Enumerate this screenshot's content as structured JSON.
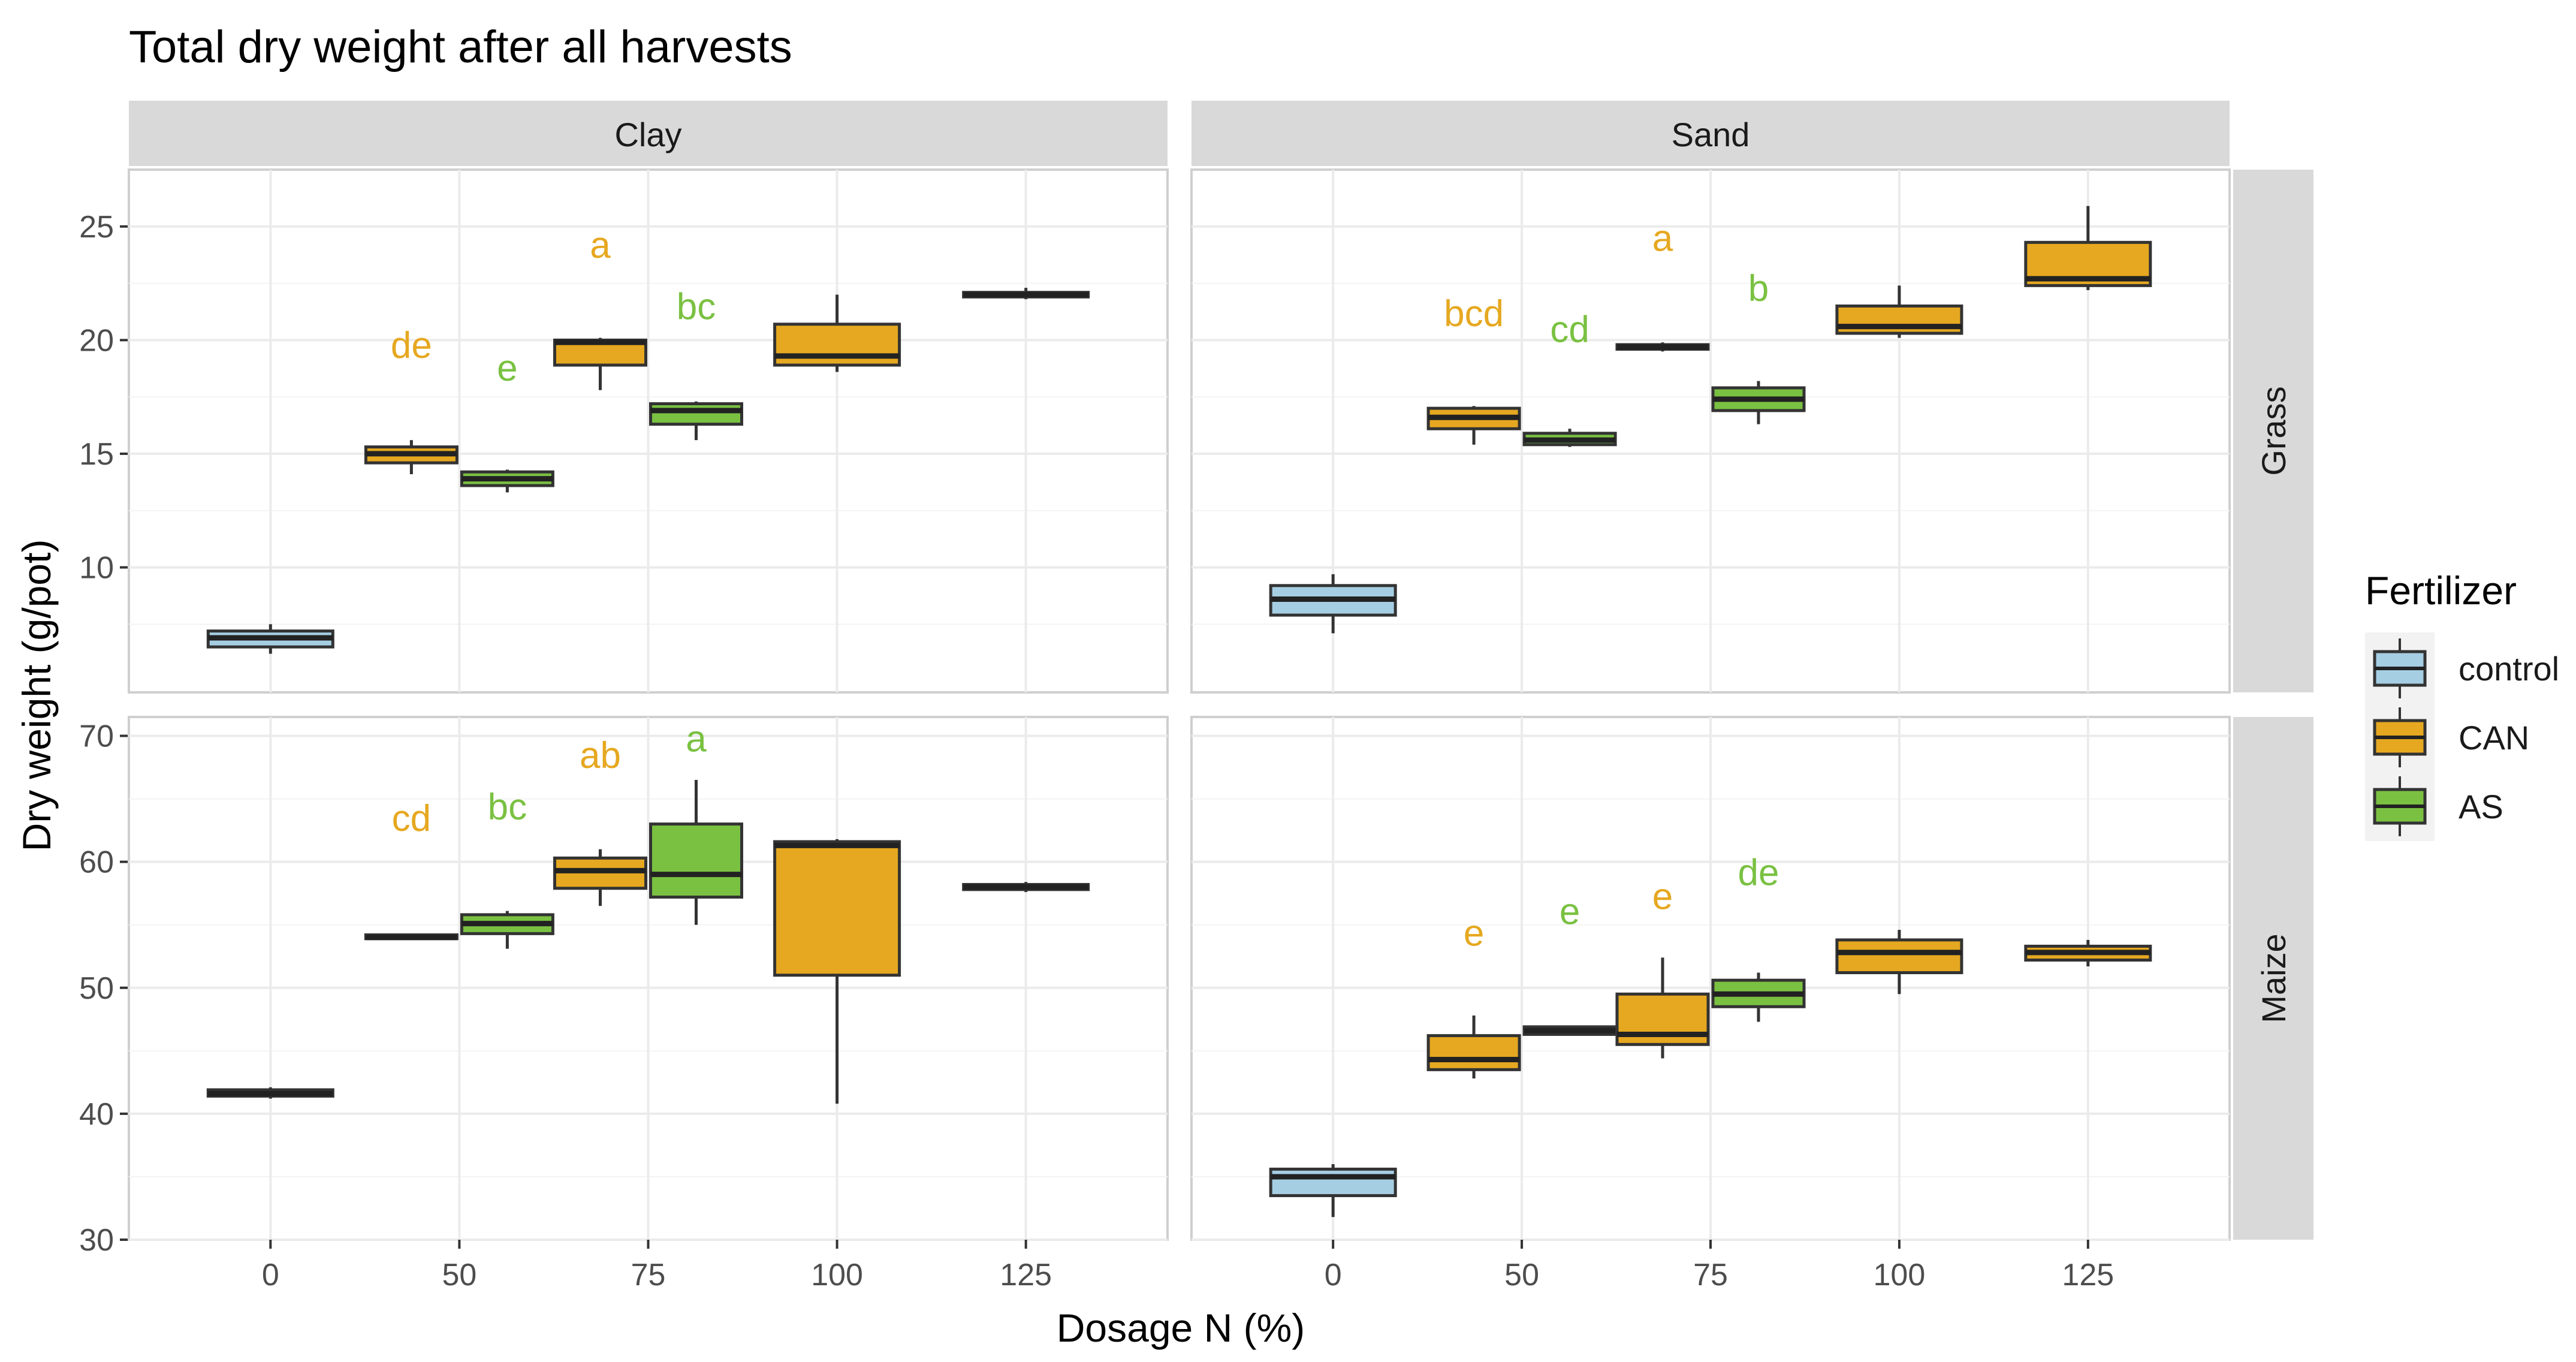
{
  "chart_data": {
    "type": "box",
    "title": "Total dry weight after all harvests",
    "xlabel": "Dosage N (%)",
    "ylabel": "Dry weight (g/pot)",
    "x_ticks": [
      "0",
      "50",
      "75",
      "100",
      "125"
    ],
    "column_strips": [
      "Clay",
      "Sand"
    ],
    "row_strips": [
      "Grass",
      "Maize"
    ],
    "legend": {
      "title": "Fertilizer",
      "position": "right",
      "entries": [
        {
          "name": "control",
          "color": "#a6cee3"
        },
        {
          "name": "CAN",
          "color": "#e6a820"
        },
        {
          "name": "AS",
          "color": "#7ac142"
        }
      ]
    },
    "label_colors": {
      "CAN": "#e6a820",
      "AS": "#7ac142"
    },
    "rows": [
      {
        "name": "Grass",
        "ylim": [
          4.5,
          27.5
        ],
        "yticks": [
          10,
          15,
          20,
          25
        ],
        "panels": [
          {
            "soil": "Clay",
            "boxes": [
              {
                "dose": "0",
                "group": "control",
                "min": 6.2,
                "q1": 6.5,
                "median": 6.9,
                "q3": 7.2,
                "max": 7.5
              },
              {
                "dose": "50",
                "group": "CAN",
                "min": 14.1,
                "q1": 14.6,
                "median": 15.0,
                "q3": 15.3,
                "max": 15.6
              },
              {
                "dose": "50",
                "group": "AS",
                "min": 13.3,
                "q1": 13.6,
                "median": 13.9,
                "q3": 14.2,
                "max": 14.3
              },
              {
                "dose": "75",
                "group": "CAN",
                "min": 17.8,
                "q1": 18.9,
                "median": 19.9,
                "q3": 20.0,
                "max": 20.1
              },
              {
                "dose": "75",
                "group": "AS",
                "min": 15.6,
                "q1": 16.3,
                "median": 16.9,
                "q3": 17.2,
                "max": 17.3
              },
              {
                "dose": "100",
                "group": "CAN",
                "min": 18.6,
                "q1": 18.9,
                "median": 19.3,
                "q3": 20.7,
                "max": 22.0
              },
              {
                "dose": "125",
                "group": "CAN",
                "min": 21.8,
                "q1": 21.9,
                "median": 22.0,
                "q3": 22.1,
                "max": 22.3
              }
            ],
            "labels": [
              {
                "text": "de",
                "dose": "50",
                "group": "CAN",
                "y": 19.8
              },
              {
                "text": "e",
                "dose": "50",
                "group": "AS",
                "y": 18.8
              },
              {
                "text": "a",
                "dose": "75",
                "group": "CAN",
                "y": 24.2
              },
              {
                "text": "bc",
                "dose": "75",
                "group": "AS",
                "y": 21.5
              }
            ]
          },
          {
            "soil": "Sand",
            "boxes": [
              {
                "dose": "0",
                "group": "control",
                "min": 7.1,
                "q1": 7.9,
                "median": 8.6,
                "q3": 9.2,
                "max": 9.7
              },
              {
                "dose": "50",
                "group": "CAN",
                "min": 15.4,
                "q1": 16.1,
                "median": 16.6,
                "q3": 17.0,
                "max": 17.1
              },
              {
                "dose": "50",
                "group": "AS",
                "min": 15.3,
                "q1": 15.4,
                "median": 15.6,
                "q3": 15.9,
                "max": 16.1
              },
              {
                "dose": "75",
                "group": "CAN",
                "min": 19.5,
                "q1": 19.6,
                "median": 19.7,
                "q3": 19.8,
                "max": 19.9
              },
              {
                "dose": "75",
                "group": "AS",
                "min": 16.3,
                "q1": 16.9,
                "median": 17.4,
                "q3": 17.9,
                "max": 18.2
              },
              {
                "dose": "100",
                "group": "CAN",
                "min": 20.1,
                "q1": 20.3,
                "median": 20.6,
                "q3": 21.5,
                "max": 22.4
              },
              {
                "dose": "125",
                "group": "CAN",
                "min": 22.2,
                "q1": 22.4,
                "median": 22.7,
                "q3": 24.3,
                "max": 25.9
              }
            ],
            "labels": [
              {
                "text": "bcd",
                "dose": "50",
                "group": "CAN",
                "y": 21.2
              },
              {
                "text": "cd",
                "dose": "50",
                "group": "AS",
                "y": 20.5
              },
              {
                "text": "a",
                "dose": "75",
                "group": "CAN",
                "y": 24.5
              },
              {
                "text": "b",
                "dose": "75",
                "group": "AS",
                "y": 22.3
              }
            ]
          }
        ]
      },
      {
        "name": "Maize",
        "ylim": [
          30,
          71.5
        ],
        "yticks": [
          30,
          40,
          50,
          60,
          70
        ],
        "panels": [
          {
            "soil": "Clay",
            "boxes": [
              {
                "dose": "0",
                "group": "control",
                "min": 41.2,
                "q1": 41.4,
                "median": 41.6,
                "q3": 41.9,
                "max": 42.1
              },
              {
                "dose": "50",
                "group": "CAN",
                "min": 53.8,
                "q1": 53.9,
                "median": 54.0,
                "q3": 54.2,
                "max": 54.3
              },
              {
                "dose": "50",
                "group": "AS",
                "min": 53.1,
                "q1": 54.3,
                "median": 55.1,
                "q3": 55.8,
                "max": 56.1
              },
              {
                "dose": "75",
                "group": "CAN",
                "min": 56.5,
                "q1": 57.9,
                "median": 59.3,
                "q3": 60.3,
                "max": 61.0
              },
              {
                "dose": "75",
                "group": "AS",
                "min": 55.0,
                "q1": 57.2,
                "median": 59.0,
                "q3": 63.0,
                "max": 66.5
              },
              {
                "dose": "100",
                "group": "CAN",
                "min": 40.8,
                "q1": 51.0,
                "median": 61.3,
                "q3": 61.6,
                "max": 61.8
              },
              {
                "dose": "125",
                "group": "CAN",
                "min": 57.6,
                "q1": 57.8,
                "median": 58.0,
                "q3": 58.2,
                "max": 58.4
              }
            ],
            "labels": [
              {
                "text": "cd",
                "dose": "50",
                "group": "CAN",
                "y": 63.5
              },
              {
                "text": "bc",
                "dose": "50",
                "group": "AS",
                "y": 64.4
              },
              {
                "text": "ab",
                "dose": "75",
                "group": "CAN",
                "y": 68.5
              },
              {
                "text": "a",
                "dose": "75",
                "group": "AS",
                "y": 69.8
              }
            ]
          },
          {
            "soil": "Sand",
            "boxes": [
              {
                "dose": "0",
                "group": "control",
                "min": 31.8,
                "q1": 33.5,
                "median": 35.0,
                "q3": 35.6,
                "max": 36.0
              },
              {
                "dose": "50",
                "group": "CAN",
                "min": 42.8,
                "q1": 43.5,
                "median": 44.3,
                "q3": 46.2,
                "max": 47.8
              },
              {
                "dose": "50",
                "group": "AS",
                "min": 46.2,
                "q1": 46.3,
                "median": 46.6,
                "q3": 46.9,
                "max": 47.0
              },
              {
                "dose": "75",
                "group": "CAN",
                "min": 44.4,
                "q1": 45.5,
                "median": 46.3,
                "q3": 49.5,
                "max": 52.4
              },
              {
                "dose": "75",
                "group": "AS",
                "min": 47.3,
                "q1": 48.5,
                "median": 49.5,
                "q3": 50.6,
                "max": 51.2
              },
              {
                "dose": "100",
                "group": "CAN",
                "min": 49.5,
                "q1": 51.2,
                "median": 52.8,
                "q3": 53.8,
                "max": 54.6
              },
              {
                "dose": "125",
                "group": "CAN",
                "min": 51.7,
                "q1": 52.2,
                "median": 52.8,
                "q3": 53.3,
                "max": 53.8
              }
            ],
            "labels": [
              {
                "text": "e",
                "dose": "50",
                "group": "CAN",
                "y": 54.4
              },
              {
                "text": "e",
                "dose": "50",
                "group": "AS",
                "y": 56.1
              },
              {
                "text": "e",
                "dose": "75",
                "group": "CAN",
                "y": 57.3
              },
              {
                "text": "de",
                "dose": "75",
                "group": "AS",
                "y": 59.2
              }
            ]
          }
        ]
      }
    ]
  }
}
